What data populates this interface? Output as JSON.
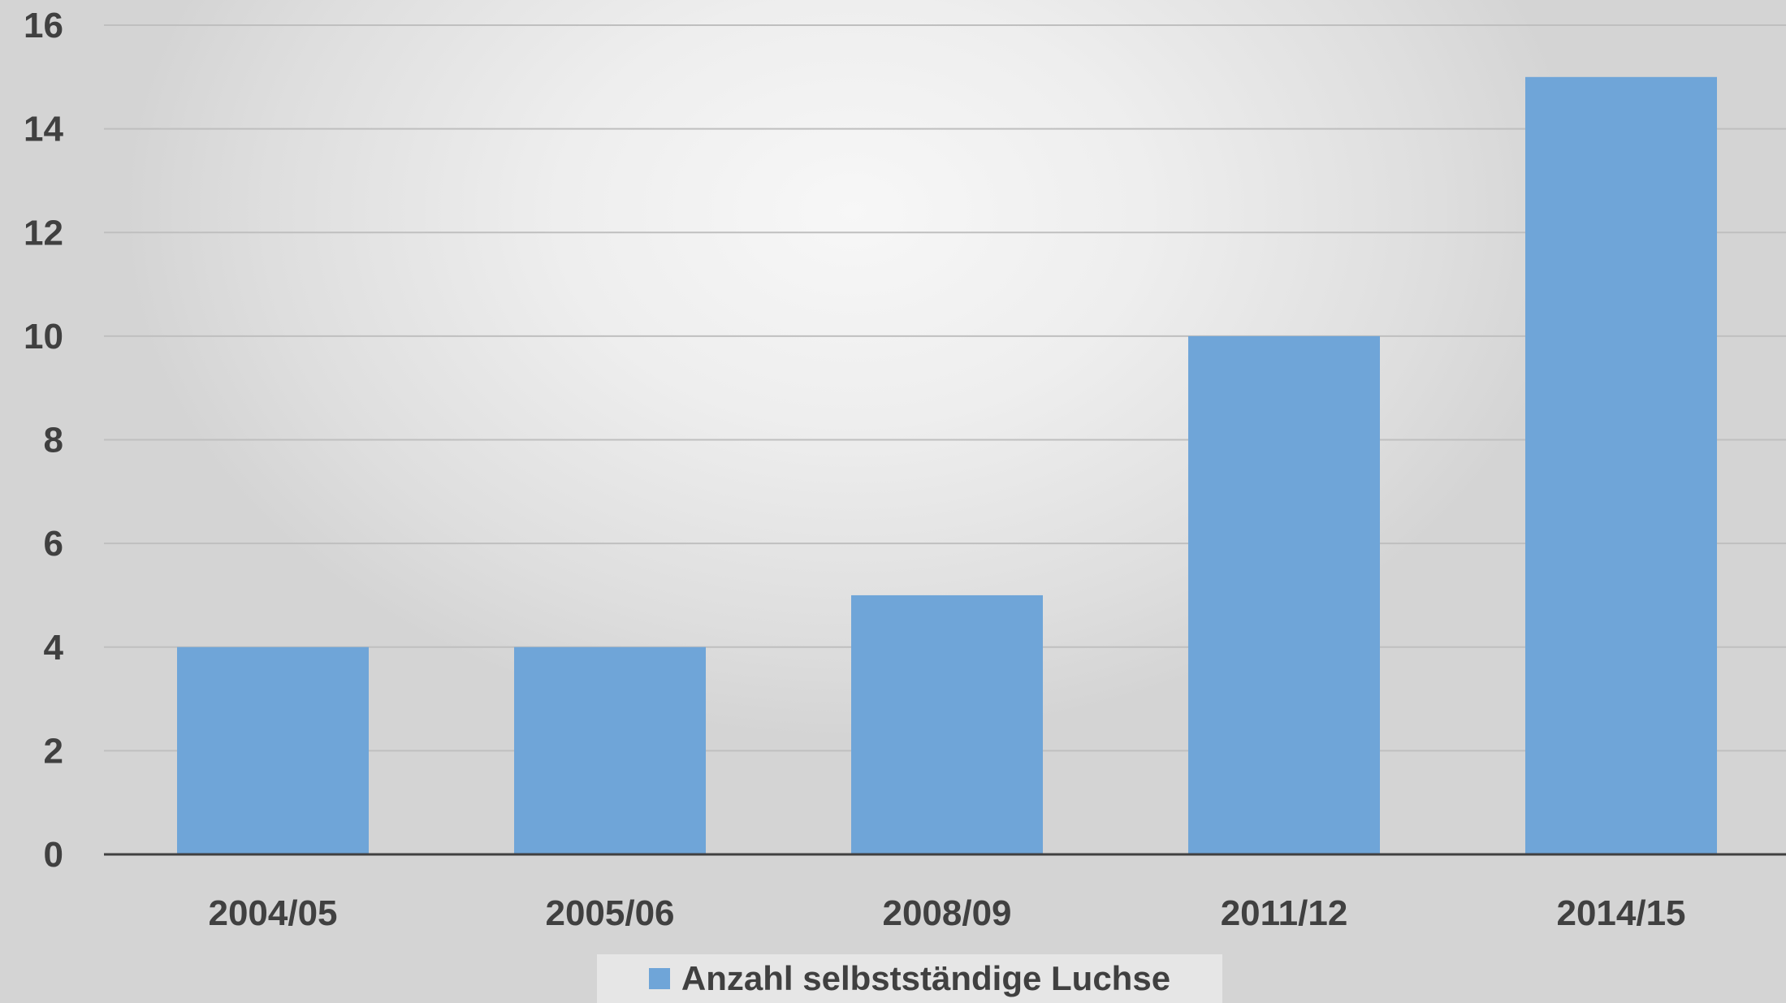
{
  "colors": {
    "bar": "#6fa5d8",
    "grid": "#bfbfbf",
    "axis": "#404040",
    "text": "#404040"
  },
  "chart_data": {
    "type": "bar",
    "categories": [
      "2004/05",
      "2005/06",
      "2008/09",
      "2011/12",
      "2014/15"
    ],
    "series": [
      {
        "name": "Anzahl selbstständige Luchse",
        "values": [
          4,
          4,
          5,
          10,
          15
        ]
      }
    ],
    "ylim": [
      0,
      16
    ],
    "yticks": [
      0,
      2,
      4,
      6,
      8,
      10,
      12,
      14,
      16
    ],
    "grid": true,
    "legend": "bottom",
    "title": "",
    "xlabel": "",
    "ylabel": ""
  }
}
